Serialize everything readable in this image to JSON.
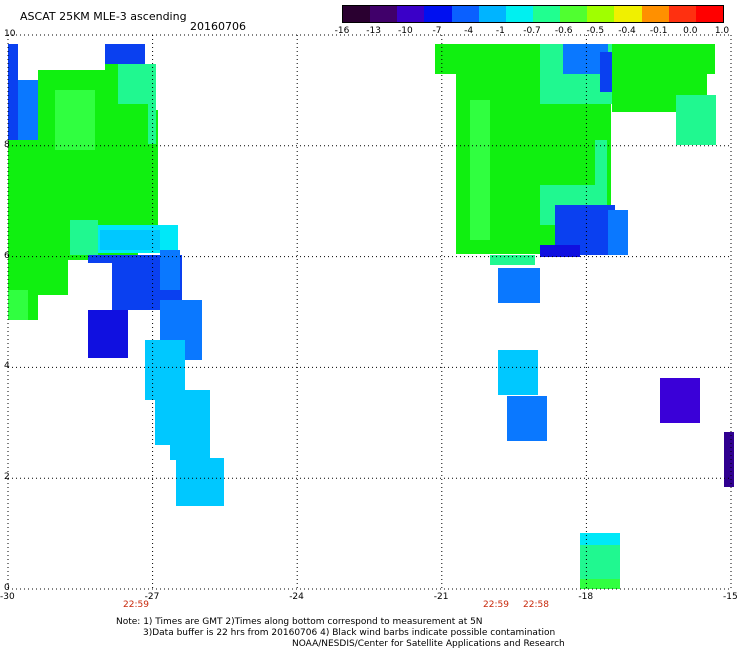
{
  "header": {
    "title": "ASCAT 25KM MLE-3 ascending",
    "date": "20160706"
  },
  "colorbar": {
    "labels": [
      "-16",
      "-13",
      "-10",
      "-7",
      "-4",
      "-1",
      "-0.7",
      "-0.6",
      "-0.5",
      "-0.4",
      "-0.1",
      "0.0",
      "1.0"
    ],
    "colors": [
      "#2a0030",
      "#40006a",
      "#3a00c8",
      "#0010f0",
      "#0a60ff",
      "#00b4ff",
      "#00f0f0",
      "#20ff90",
      "#50ff30",
      "#a0ff00",
      "#f0f000",
      "#ff9000",
      "#ff3010",
      "#ff0000"
    ]
  },
  "axes": {
    "x_ticks": [
      "-30",
      "-27",
      "-24",
      "-21",
      "-18",
      "-15"
    ],
    "y_ticks": [
      "0",
      "2",
      "4",
      "6",
      "8",
      "10"
    ],
    "lon_range": [
      -30,
      -15
    ],
    "lat_range": [
      0,
      10
    ]
  },
  "times": [
    "22:59",
    "22:59",
    "22:58"
  ],
  "notes": [
    "Note: 1) Times are GMT 2)Times along bottom correspond to measurement at 5N",
    "3)Data buffer is 22 hrs from 20160706 4) Black wind barbs indicate possible contamination",
    "NOAA/NESDIS/Center for Satellite Applications and Research"
  ],
  "palette": {
    "green": "#10f010",
    "lightgreen": "#30ff40",
    "seagreen": "#20f890",
    "cyan": "#00e8f8",
    "skyblue": "#00c8ff",
    "blue": "#0a78ff",
    "royal": "#0a40f0",
    "deepblue": "#1010e0",
    "violet": "#3a00d8",
    "purple": "#300090"
  }
}
